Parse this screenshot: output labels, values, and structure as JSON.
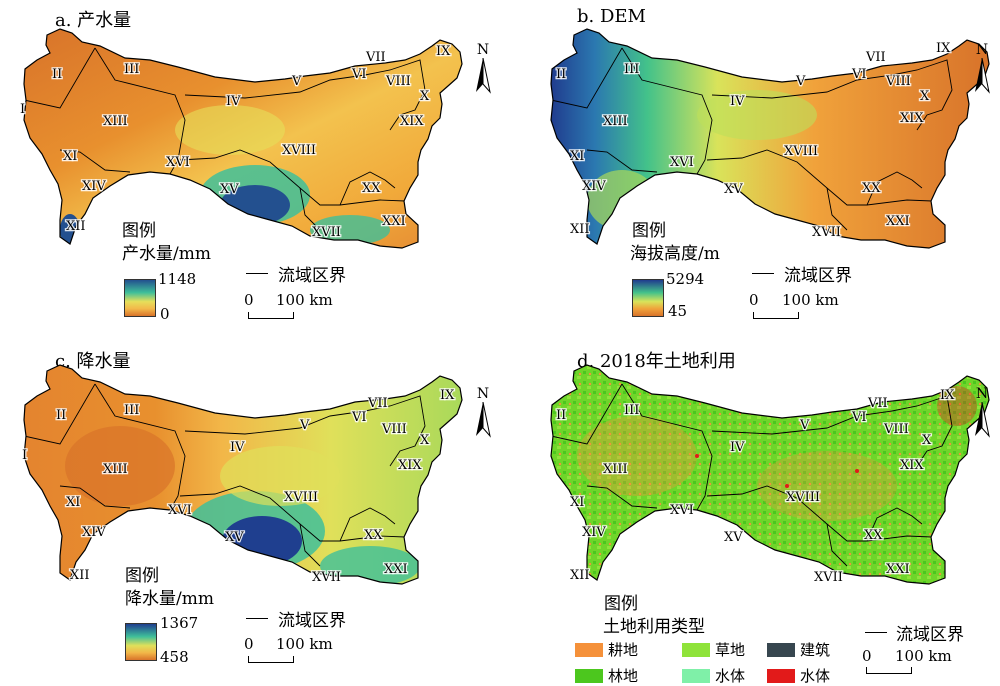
{
  "panels": [
    {
      "title": "a. 产水量",
      "legend_title": "图例",
      "variable": "产水量/mm",
      "max": "1148",
      "min": "0",
      "boundary_label": "流域区界",
      "scale_zero": "0",
      "scale_label": "100 km",
      "colors": {
        "low": "#d8732a",
        "mid1": "#f3b84a",
        "mid2": "#e6df5a",
        "mid3": "#3fbf9a",
        "high": "#23508f"
      }
    },
    {
      "title": "b. DEM",
      "legend_title": "图例",
      "variable": "海拔高度/m",
      "max": "5294",
      "min": "45",
      "boundary_label": "流域区界",
      "scale_zero": "0",
      "scale_label": "100 km",
      "colors": {
        "low": "#d8732a",
        "mid1": "#f0a23b",
        "mid2": "#d9e35a",
        "mid3": "#43c28a",
        "high": "#203c8e"
      }
    },
    {
      "title": "c. 降水量",
      "legend_title": "图例",
      "variable": "降水量/mm",
      "max": "1367",
      "min": "458",
      "boundary_label": "流域区界",
      "scale_zero": "0",
      "scale_label": "100 km",
      "colors": {
        "low": "#d8732a",
        "mid1": "#f2b648",
        "mid2": "#e0e05a",
        "mid3": "#3fbf9a",
        "high": "#1f3f8f"
      }
    },
    {
      "title": "d. 2018年土地利用",
      "legend_title": "图例",
      "variable": "土地利用类型",
      "boundary_label": "流域区界",
      "scale_zero": "0",
      "scale_label": "100 km",
      "landuse_items": [
        {
          "label": "耕地",
          "color": "#f5913a"
        },
        {
          "label": "草地",
          "color": "#8fe33a"
        },
        {
          "label": "建筑",
          "color": "#37464f"
        },
        {
          "label": "林地",
          "color": "#4cc71e"
        },
        {
          "label": "水体",
          "color": "#7ff0a8"
        },
        {
          "label": "水体",
          "color": "#e21a1a"
        }
      ]
    }
  ],
  "regions": [
    "II",
    "III",
    "I",
    "XIII",
    "XI",
    "XIV",
    "XII",
    "IV",
    "XVI",
    "XV",
    "XVIII",
    "XX",
    "XVII",
    "XXI",
    "V",
    "VI",
    "VII",
    "VIII",
    "IX",
    "X",
    "XIX"
  ],
  "north_label": "N",
  "icons": [
    "north-arrow-icon"
  ]
}
